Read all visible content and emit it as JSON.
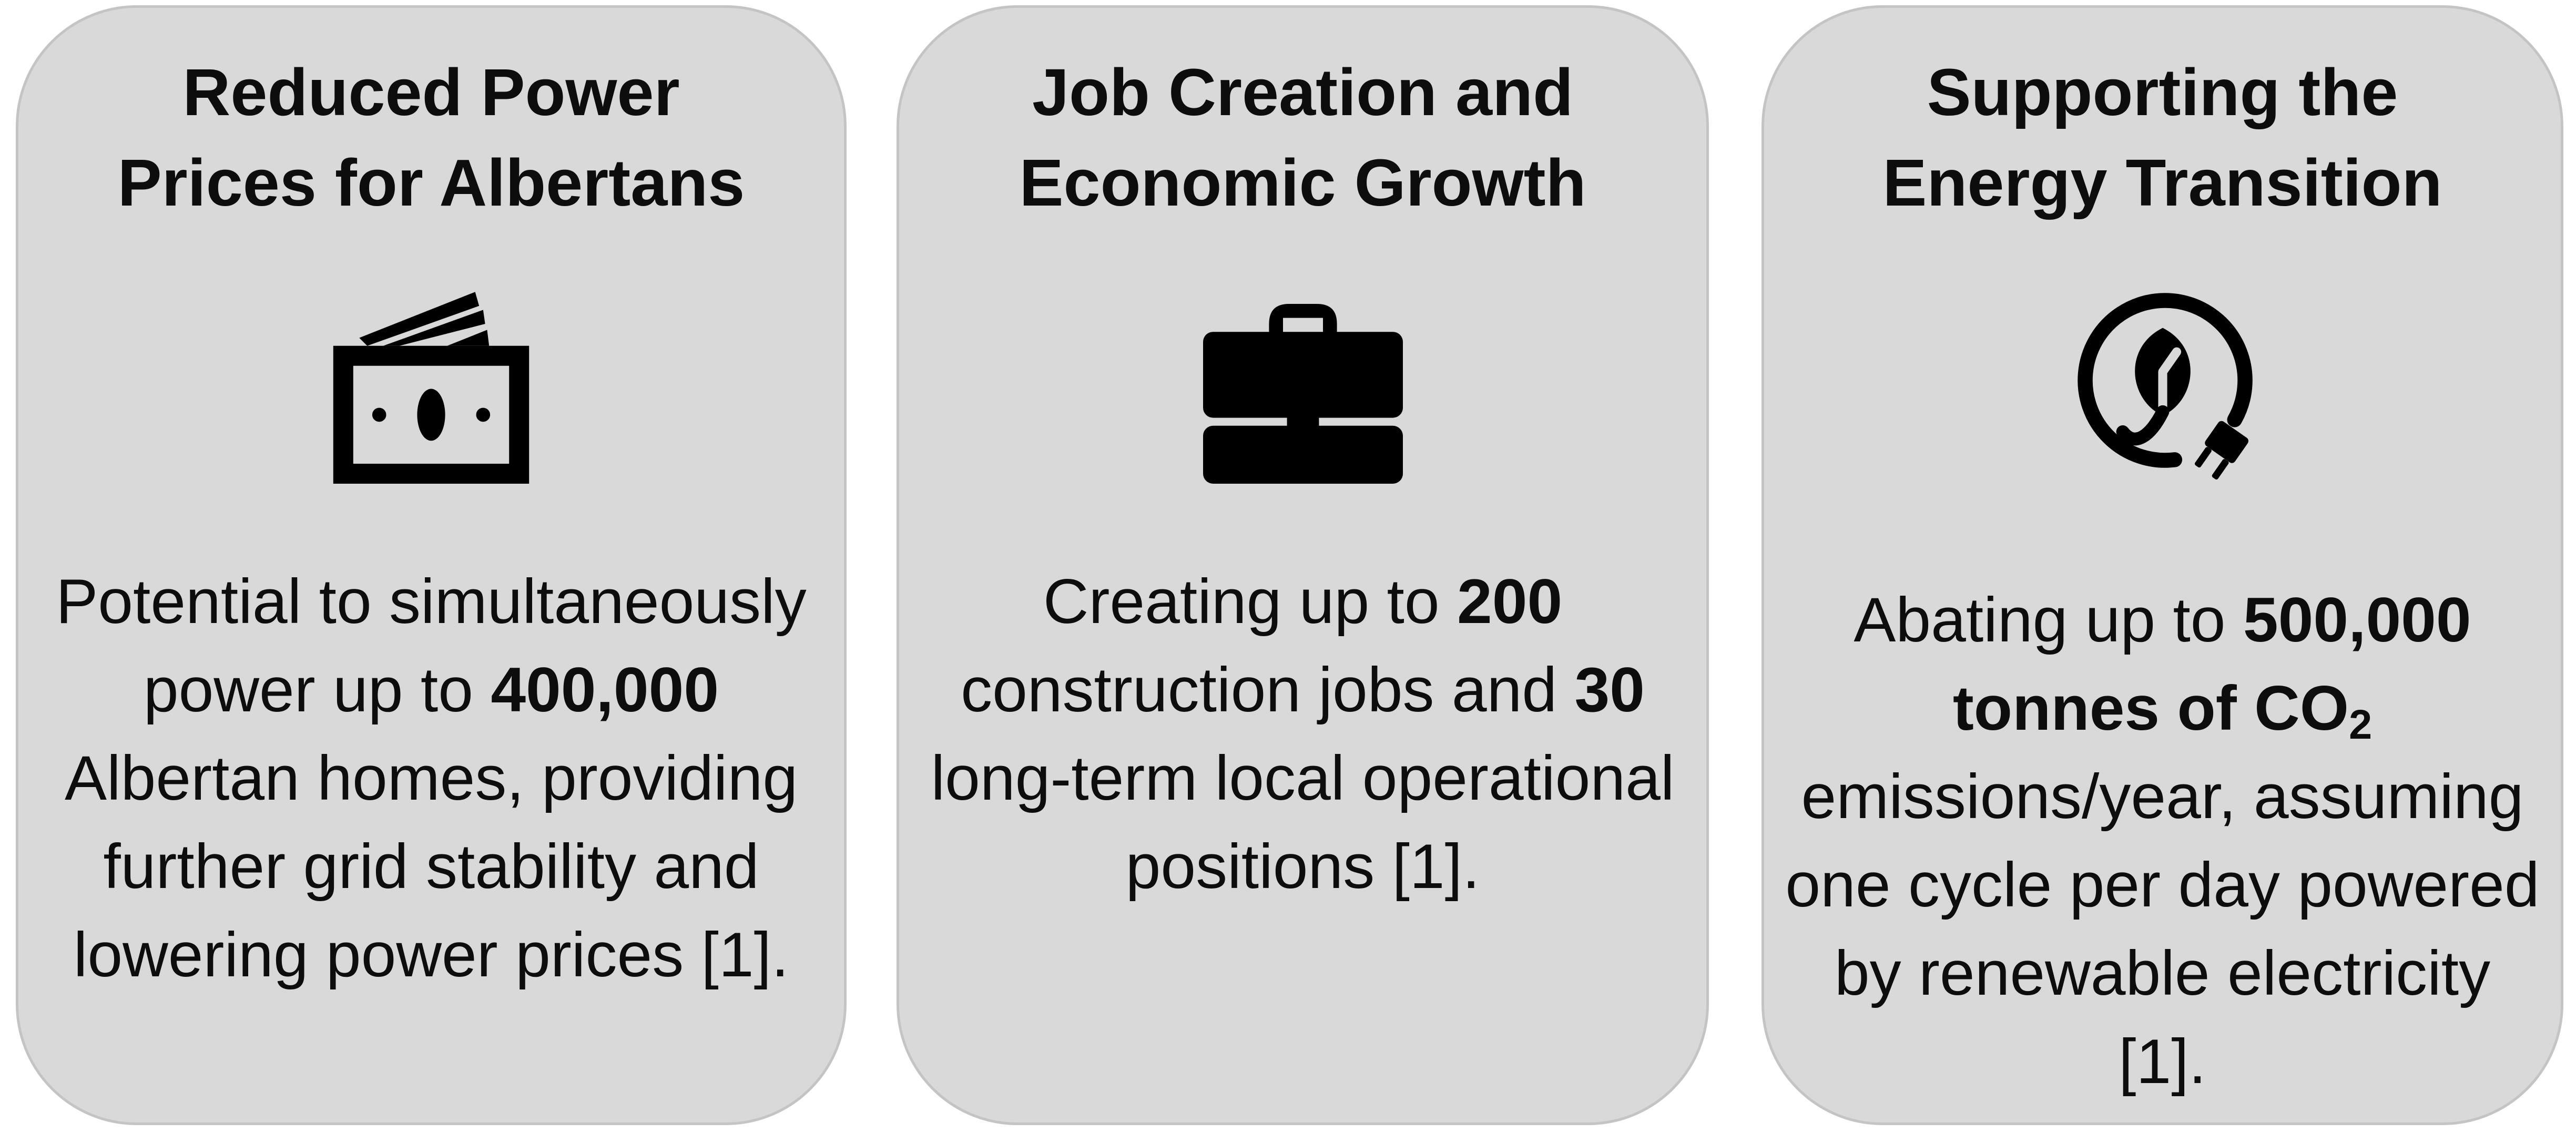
{
  "cards": [
    {
      "title_lines": [
        "Reduced Power",
        "Prices for Albertans"
      ],
      "icon": "money-icon",
      "body": {
        "part1": "Potential to simultaneously power up to ",
        "bold1": "400,000",
        "part2": " Albertan homes, providing further grid stability and lowering power prices [1]."
      }
    },
    {
      "title_lines": [
        "Job Creation and",
        "Economic Growth"
      ],
      "icon": "briefcase-icon",
      "body": {
        "part1": "Creating up to ",
        "bold1": "200",
        "part2": " construction jobs and ",
        "bold2": "30",
        "part3": " long-term local operational positions [1]."
      }
    },
    {
      "title_lines": [
        "Supporting the",
        "Energy Transition"
      ],
      "icon": "leaf-plug-icon",
      "body": {
        "part1": "Abating up to ",
        "bold1": "500,000 tonnes of CO",
        "bold1_sub": "2",
        "part2": " emissions/year, assuming one cycle per day powered by renewable electricity [1]."
      }
    }
  ],
  "colors": {
    "card_background": "#d9d9d9",
    "card_border": "#c4c4c4",
    "text": "#0d0d0d",
    "icon": "#000000"
  }
}
